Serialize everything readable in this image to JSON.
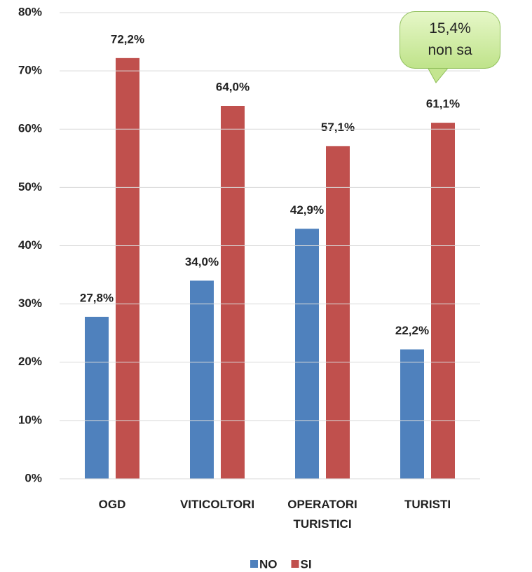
{
  "chart_data": {
    "type": "bar",
    "categories": [
      "OGD",
      "VITICOLTORI",
      "OPERATORI TURISTICI",
      "TURISTI"
    ],
    "series": [
      {
        "name": "NO",
        "color": "#4f81bd",
        "values": [
          27.8,
          34.0,
          42.9,
          22.2
        ],
        "value_labels": [
          "27,8%",
          "34,0%",
          "42,9%",
          "22,2%"
        ]
      },
      {
        "name": "SI",
        "color": "#c0504d",
        "values": [
          72.2,
          64.0,
          57.1,
          61.1
        ],
        "value_labels": [
          "72,2%",
          "64,0%",
          "57,1%",
          "61,1%"
        ]
      }
    ],
    "ylim": [
      0,
      80
    ],
    "yticks": [
      {
        "value": 0,
        "label": "0%"
      },
      {
        "value": 10,
        "label": "10%"
      },
      {
        "value": 20,
        "label": "20%"
      },
      {
        "value": 30,
        "label": "30%"
      },
      {
        "value": 40,
        "label": "40%"
      },
      {
        "value": 50,
        "label": "50%"
      },
      {
        "value": 60,
        "label": "60%"
      },
      {
        "value": 70,
        "label": "70%"
      },
      {
        "value": 80,
        "label": "80%"
      }
    ],
    "grid": true,
    "legend": "bottom",
    "annotation": [
      "15,4%",
      "non sa"
    ]
  }
}
